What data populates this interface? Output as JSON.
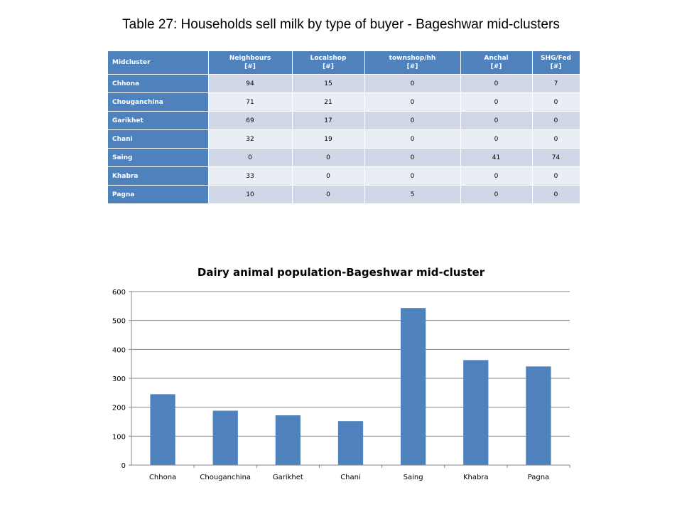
{
  "page_title": "Table 27: Households sell milk by type of buyer - Bageshwar mid-clusters",
  "table": {
    "headers": [
      {
        "line1": "Midcluster",
        "line2": ""
      },
      {
        "line1": "Neighbours",
        "line2": "[#]"
      },
      {
        "line1": "Localshop",
        "line2": "[#]"
      },
      {
        "line1": "townshop/hh",
        "line2": "[#]"
      },
      {
        "line1": "Anchal",
        "line2": "[#]"
      },
      {
        "line1": "SHG/Fed",
        "line2": "[#]"
      }
    ],
    "rows": [
      {
        "name": "Chhona",
        "values": [
          "94",
          "15",
          "0",
          "0",
          "7"
        ]
      },
      {
        "name": "Chouganchina",
        "values": [
          "71",
          "21",
          "0",
          "0",
          "0"
        ]
      },
      {
        "name": "Garikhet",
        "values": [
          "69",
          "17",
          "0",
          "0",
          "0"
        ]
      },
      {
        "name": "Chani",
        "values": [
          "32",
          "19",
          "0",
          "0",
          "0"
        ]
      },
      {
        "name": "Saing",
        "values": [
          "0",
          "0",
          "0",
          "41",
          "74"
        ]
      },
      {
        "name": "Khabra",
        "values": [
          "33",
          "0",
          "0",
          "0",
          "0"
        ]
      },
      {
        "name": "Pagna",
        "values": [
          "10",
          "0",
          "5",
          "0",
          "0"
        ]
      }
    ]
  },
  "colors": {
    "header_bg": "#4f81bd",
    "row_odd": "#d0d8e8",
    "row_even": "#e9edf4",
    "bar": "#4f81bd",
    "grid": "#868686"
  },
  "chart_data": {
    "type": "bar",
    "title": "Dairy animal population-Bageshwar mid-cluster",
    "categories": [
      "Chhona",
      "Chouganchina",
      "Garikhet",
      "Chani",
      "Saing",
      "Khabra",
      "Pagna"
    ],
    "values": [
      245,
      188,
      172,
      152,
      543,
      363,
      341
    ],
    "ylim": [
      0,
      600
    ],
    "yticks": [
      0,
      100,
      200,
      300,
      400,
      500,
      600
    ],
    "xlabel": "",
    "ylabel": "",
    "grid": true,
    "legend": false
  }
}
